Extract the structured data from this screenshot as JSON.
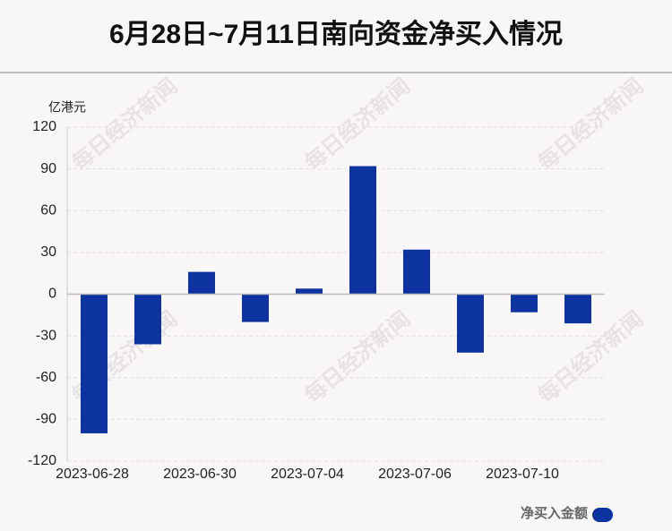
{
  "chart_data": {
    "type": "bar",
    "title": "6月28日~7月11日南向资金净买入情况",
    "y_label": "亿港元",
    "categories": [
      "2023-06-28",
      null,
      "2023-06-30",
      null,
      "2023-07-04",
      null,
      "2023-07-06",
      null,
      "2023-07-10",
      null
    ],
    "series": [
      {
        "name": "净买入金额",
        "color": "#0d33a0",
        "values": [
          -100,
          -36,
          16,
          -20,
          4,
          92,
          32,
          -42,
          -13,
          -21
        ]
      }
    ],
    "ylim": [
      -120,
      120
    ],
    "yticks": [
      -120,
      -90,
      -60,
      -30,
      0,
      30,
      60,
      90,
      120
    ],
    "grid": true,
    "legend": "bottom-right",
    "watermark": "每日经济新闻"
  }
}
